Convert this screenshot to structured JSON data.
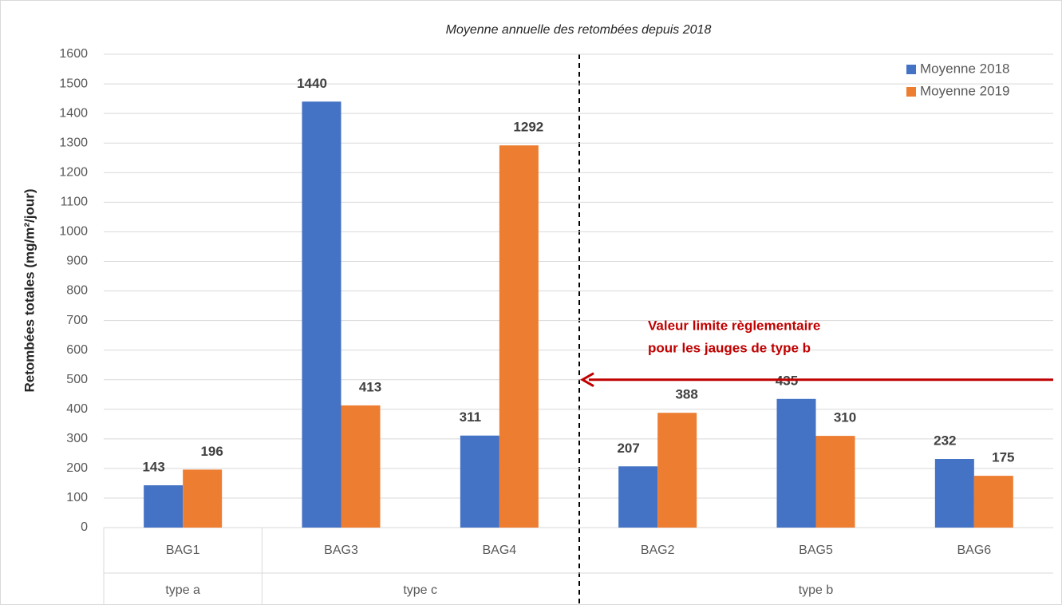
{
  "chart_data": {
    "type": "bar",
    "title": "Moyenne annuelle des retombées depuis 2018",
    "ylabel": "Retombées totales (mg/m²/jour)",
    "categories": [
      "BAG1",
      "BAG3",
      "BAG4",
      "BAG2",
      "BAG5",
      "BAG6"
    ],
    "groups": [
      {
        "label": "type a",
        "span": 1
      },
      {
        "label": "type c",
        "span": 2
      },
      {
        "label": "type b",
        "span": 3
      }
    ],
    "series": [
      {
        "name": "Moyenne 2018",
        "color": "#4472c4",
        "values": [
          143,
          1440,
          311,
          207,
          435,
          232
        ]
      },
      {
        "name": "Moyenne 2019",
        "color": "#ed7d31",
        "values": [
          196,
          413,
          1292,
          388,
          310,
          175
        ]
      }
    ],
    "ylim": [
      0,
      1600
    ],
    "yticks": [
      0,
      100,
      200,
      300,
      400,
      500,
      600,
      700,
      800,
      900,
      1000,
      1100,
      1200,
      1300,
      1400,
      1500,
      1600
    ],
    "grid": true,
    "legend": "top-right",
    "reference_line": {
      "value": 500,
      "color": "#c00000",
      "label": [
        "Valeur limite règlementaire",
        "pour les jauges de type b"
      ]
    }
  }
}
